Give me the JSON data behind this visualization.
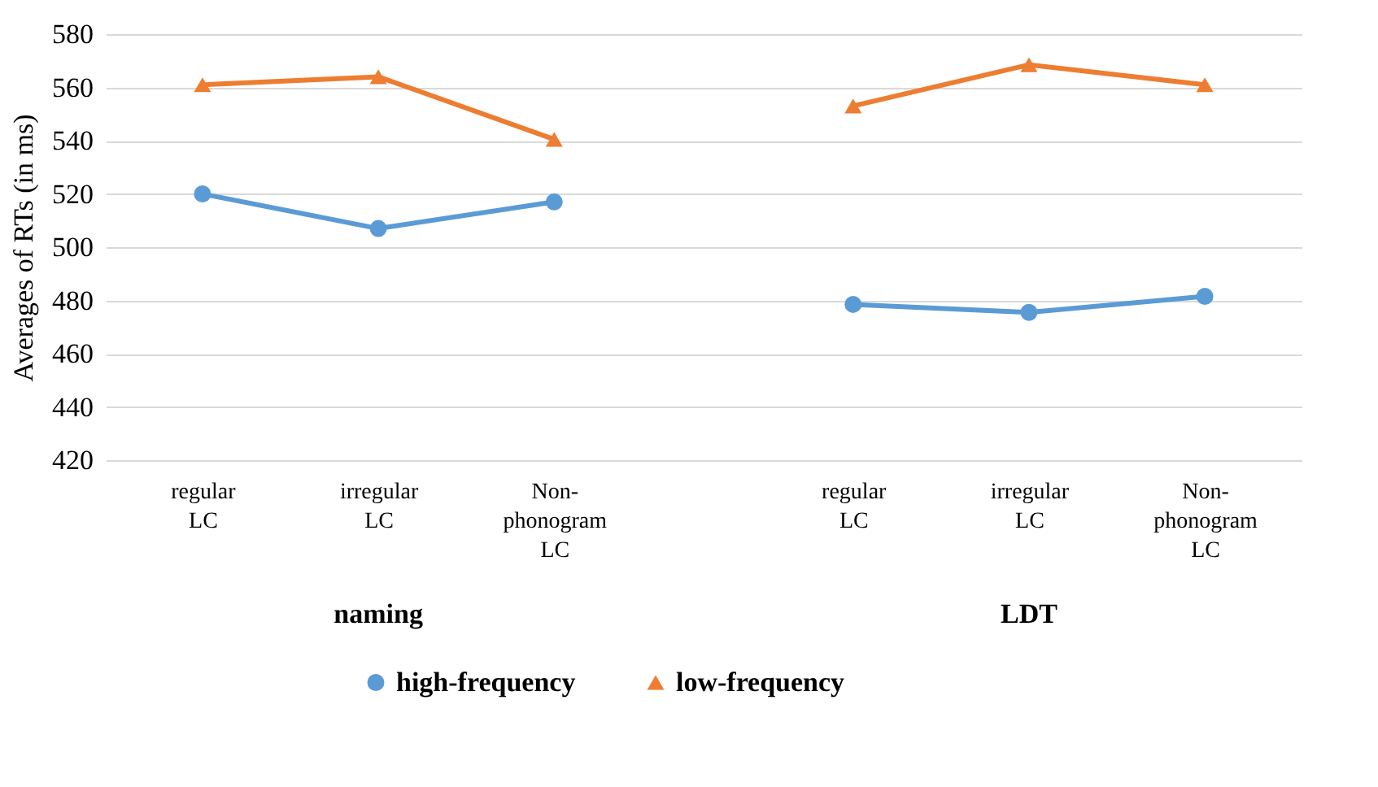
{
  "chart_data": {
    "type": "line",
    "ylabel": "Averages of RTs (in ms)",
    "categories": [
      "regular LC",
      "irregular LC",
      "Non-phonogram LC",
      "regular LC",
      "irregular LC",
      "Non-phonogram LC"
    ],
    "annotations": [
      "naming",
      "LDT"
    ],
    "series": [
      {
        "name": "high-frequency",
        "color": "#5b9bd5",
        "marker": "circle",
        "values": [
          520,
          507,
          517,
          478.5,
          475.5,
          481.5
        ]
      },
      {
        "name": "low-frequency",
        "color": "#ed7d31",
        "marker": "triangle",
        "values": [
          561,
          564,
          540.5,
          553,
          568.5,
          561
        ]
      }
    ],
    "ylim": [
      420,
      580
    ],
    "yticks": [
      420,
      440,
      460,
      480,
      500,
      520,
      540,
      560,
      580
    ],
    "grid": "y",
    "legend": "bottom"
  }
}
